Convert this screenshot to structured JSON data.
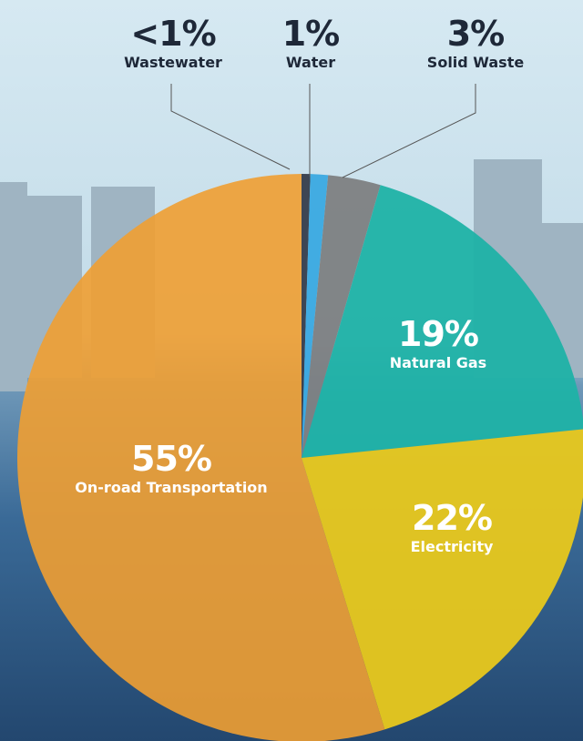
{
  "chart_data": {
    "type": "pie",
    "categories": [
      "Wastewater",
      "Water",
      "Solid Waste",
      "Natural Gas",
      "Electricity",
      "On-road Transportation"
    ],
    "values": [
      0.5,
      1,
      3,
      19,
      22,
      55
    ],
    "value_labels": [
      "<1%",
      "1%",
      "3%",
      "19%",
      "22%",
      "55%"
    ],
    "colors": [
      "#363d4c",
      "#3aa9e2",
      "#7d7f82",
      "#1fb2a6",
      "#e8c81c",
      "#f09f32"
    ]
  }
}
